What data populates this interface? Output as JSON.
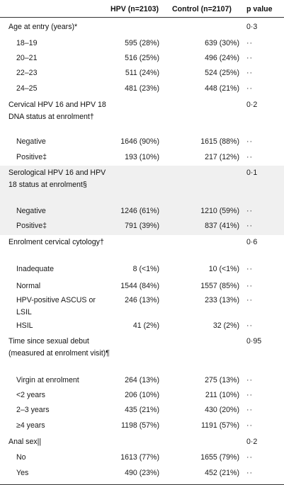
{
  "header": {
    "col_hpv": "HPV (n=2103)",
    "col_control": "Control (n=2107)",
    "col_p": "p value"
  },
  "sections": [
    {
      "title": "Age at entry (years)*",
      "p_value": "0·3",
      "rows": [
        {
          "label": "18–19",
          "hpv": "595 (28%)",
          "control": "639 (30%)",
          "p": "··"
        },
        {
          "label": "20–21",
          "hpv": "516 (25%)",
          "control": "496 (24%)",
          "p": "··"
        },
        {
          "label": "22–23",
          "hpv": "511 (24%)",
          "control": "524 (25%)",
          "p": "··"
        },
        {
          "label": "24–25",
          "hpv": "481 (23%)",
          "control": "448 (21%)",
          "p": "··"
        }
      ]
    },
    {
      "title": "Cervical HPV 16 and HPV 18 DNA status at enrolment†",
      "p_value": "0·2",
      "rows": [
        {
          "label": "Negative",
          "hpv": "1646 (90%)",
          "control": "1615 (88%)",
          "p": "··"
        },
        {
          "label": "Positive‡",
          "hpv": "193 (10%)",
          "control": "217 (12%)",
          "p": "··"
        }
      ]
    },
    {
      "title": "Serological HPV 16 and HPV 18 status at enrolment§",
      "p_value": "0·1",
      "rows": [
        {
          "label": "Negative",
          "hpv": "1246 (61%)",
          "control": "1210 (59%)",
          "p": "··"
        },
        {
          "label": "Positive‡",
          "hpv": "791 (39%)",
          "control": "837 (41%)",
          "p": "··"
        }
      ]
    },
    {
      "title": "Enrolment cervical cytology†",
      "p_value": "0·6",
      "rows": [
        {
          "label": "Inadequate",
          "hpv": "8 (<1%)",
          "control": "10 (<1%)",
          "p": "··"
        },
        {
          "label": "Normal",
          "hpv": "1544 (84%)",
          "control": "1557 (85%)",
          "p": "··"
        },
        {
          "label": "HPV-positive ASCUS or LSIL",
          "hpv": "246 (13%)",
          "control": "233 (13%)",
          "p": "··"
        },
        {
          "label": "HSIL",
          "hpv": "41 (2%)",
          "control": "32 (2%)",
          "p": "··"
        }
      ]
    },
    {
      "title": "Time since sexual debut (measured at enrolment visit)¶",
      "p_value": "0·95",
      "rows": [
        {
          "label": "Virgin at enrolment",
          "hpv": "264 (13%)",
          "control": "275 (13%)",
          "p": "··"
        },
        {
          "label": "<2 years",
          "hpv": "206 (10%)",
          "control": "211 (10%)",
          "p": "··"
        },
        {
          "label": "2–3 years",
          "hpv": "435 (21%)",
          "control": "430 (20%)",
          "p": "··"
        },
        {
          "label": "≥4 years",
          "hpv": "1198 (57%)",
          "control": "1191 (57%)",
          "p": "··"
        }
      ]
    },
    {
      "title": "Anal sex||",
      "p_value": "0·2",
      "rows": [
        {
          "label": "No",
          "hpv": "1613 (77%)",
          "control": "1655 (79%)",
          "p": "··"
        },
        {
          "label": "Yes",
          "hpv": "490 (23%)",
          "control": "452 (21%)",
          "p": "··"
        }
      ]
    }
  ]
}
